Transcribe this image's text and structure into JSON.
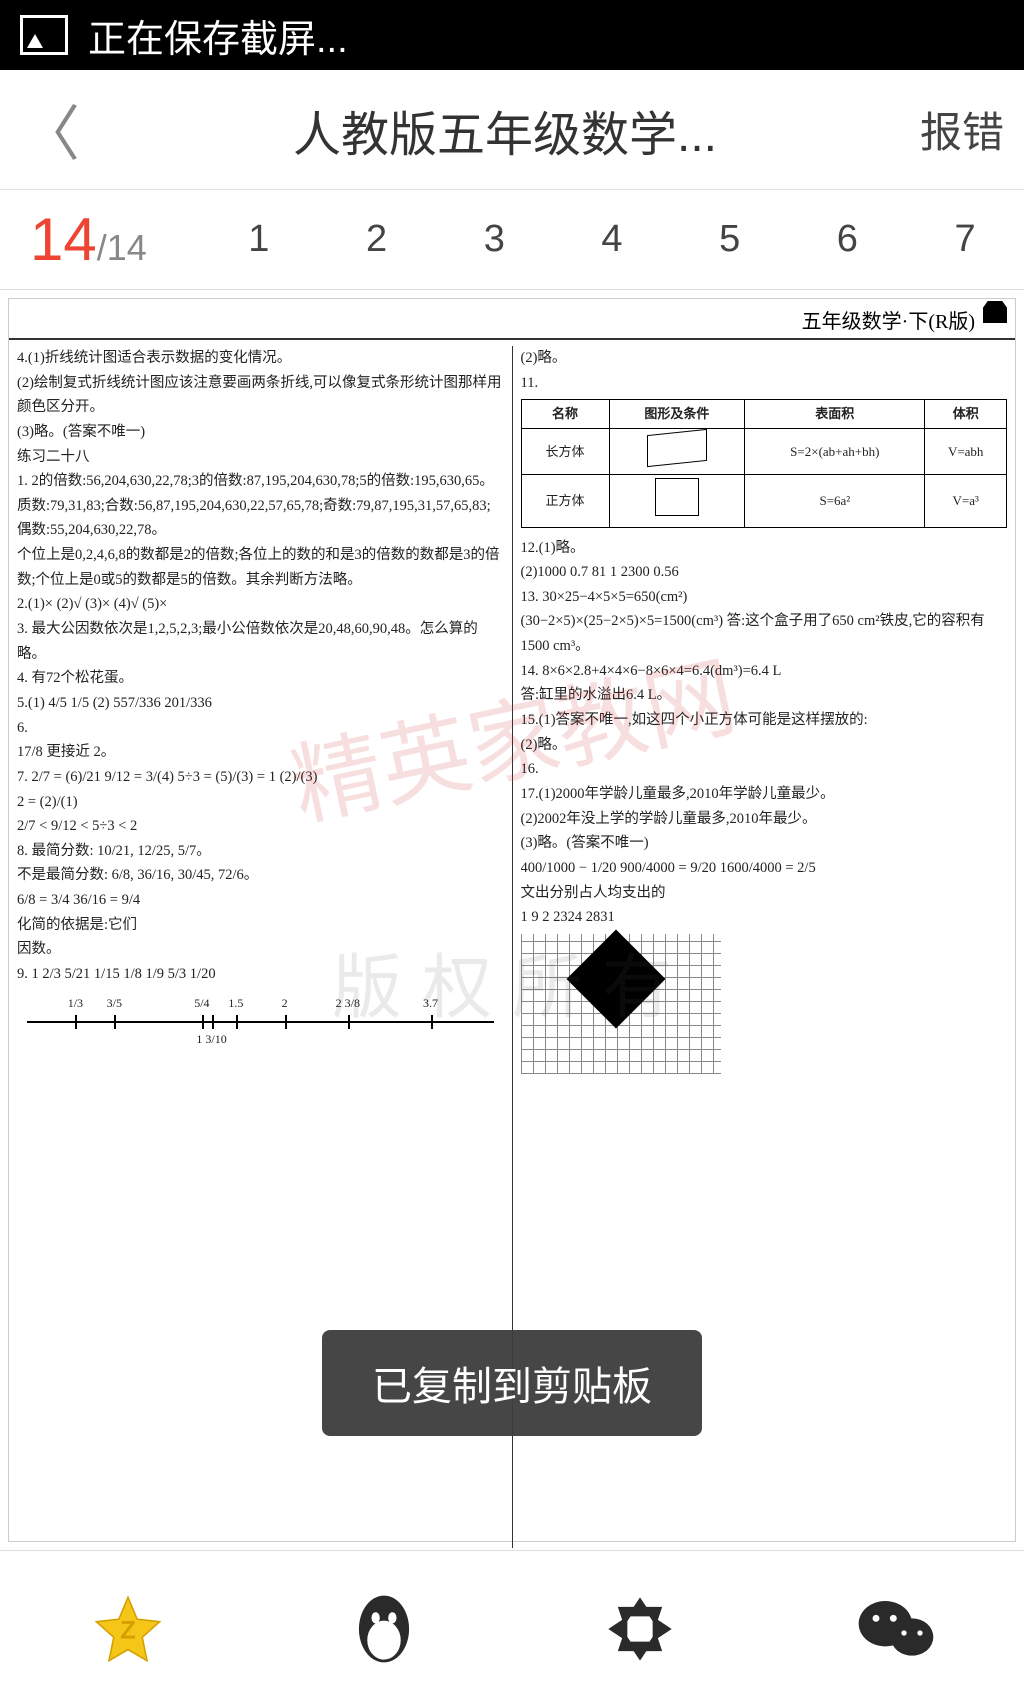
{
  "status_bar": {
    "saving_text": "正在保存截屏..."
  },
  "header": {
    "title": "人教版五年级数学...",
    "action_label": "报错"
  },
  "pager": {
    "current": "14",
    "total": "/14",
    "tabs": [
      "1",
      "2",
      "3",
      "4",
      "5",
      "6",
      "7"
    ]
  },
  "toast": {
    "text": "已复制到剪贴板"
  },
  "document": {
    "page_header": "五年级数学·下(R版)",
    "watermark1": "精英家教网",
    "watermark2": "版权所有",
    "left_column": "4.(1)折线统计图适合表示数据的变化情况。\n(2)绘制复式折线统计图应该注意要画两条折线,可以像复式条形统计图那样用颜色区分开。\n(3)略。(答案不唯一)\n练习二十八\n1. 2的倍数:56,204,630,22,78;3的倍数:87,195,204,630,78;5的倍数:195,630,65。\n质数:79,31,83;合数:56,87,195,204,630,22,57,65,78;奇数:79,87,195,31,57,65,83;偶数:55,204,630,22,78。\n个位上是0,2,4,6,8的数都是2的倍数;各位上的数的和是3的倍数的数都是3的倍数;个位上是0或5的数都是5的倍数。其余判断方法略。\n2.(1)× (2)√ (3)× (4)√ (5)×\n3. 最大公因数依次是1,2,5,2,3;最小公倍数依次是20,48,60,90,48。怎么算的略。\n4. 有72个松花蛋。\n5.(1) 4/5  1/5  (2) 557/336  201/336\n6.\n17/8 更接近 2。\n7. 2/7 = (6)/21   9/12 = 3/(4)   5÷3 = (5)/(3) = 1 (2)/(3)\n   2 = (2)/(1)\n   2/7 < 9/12 < 5÷3 < 2\n8. 最简分数: 10/21, 12/25, 5/7。\n   不是最简分数: 6/8, 36/16, 30/45, 72/6。\n   6/8 = 3/4   36/16 = 9/4\n   化简的依据是:它们\n   因数。\n9. 1  2/3  5/21  1/15  1/8  1/9  5/3  1/20",
    "number_line": {
      "labels": [
        {
          "pos": 12,
          "text": "1/3"
        },
        {
          "pos": 20,
          "text": "3/5"
        },
        {
          "pos": 38,
          "text": "5/4"
        },
        {
          "pos": 45,
          "text": "1.5"
        },
        {
          "pos": 55,
          "text": "2"
        },
        {
          "pos": 68,
          "text": "2 3/8"
        },
        {
          "pos": 85,
          "text": "3.7"
        },
        {
          "pos": 40,
          "text": "1 3/10",
          "below": true
        }
      ]
    },
    "right_column_top": "(2)略。\n11.",
    "table": {
      "headers": [
        "名称",
        "图形及条件",
        "表面积",
        "体积"
      ],
      "rows": [
        [
          "长方体",
          "cuboid",
          "S=2×(ab+ah+bh)",
          "V=abh"
        ],
        [
          "正方体",
          "cube",
          "S=6a²",
          "V=a³"
        ]
      ]
    },
    "right_column_rest": "12.(1)略。\n(2)1000  0.7  81  1  2300  0.56\n13. 30×25−4×5×5=650(cm²)\n(30−2×5)×(25−2×5)×5=1500(cm³)  答:这个盒子用了650 cm²铁皮,它的容积有1500 cm³。\n14. 8×6×2.8+4×4×6−8×6×4=6.4(dm³)=6.4 L\n答:缸里的水溢出6.4 L。\n15.(1)答案不唯一,如这四个小正方体可能是这样摆放的:\n(2)略。\n16.\n17.(1)2000年学龄儿童最多,2010年学龄儿童最少。\n(2)2002年没上学的学龄儿童最多,2010年最少。\n(3)略。(答案不唯一)\n   400/1000 − 1/20   900/4000 = 9/20   1600/4000 = 2/5\n文出分别占人均支出的\n1  9  2  2324  2831"
  },
  "colors": {
    "status_bg": "#000000",
    "accent_red": "#ee4433",
    "text_dark": "#333333",
    "text_gray": "#888888",
    "toast_bg": "#3c3c3cf2",
    "star_fill": "#f5c518",
    "icon_dark": "#2a2a2a"
  }
}
